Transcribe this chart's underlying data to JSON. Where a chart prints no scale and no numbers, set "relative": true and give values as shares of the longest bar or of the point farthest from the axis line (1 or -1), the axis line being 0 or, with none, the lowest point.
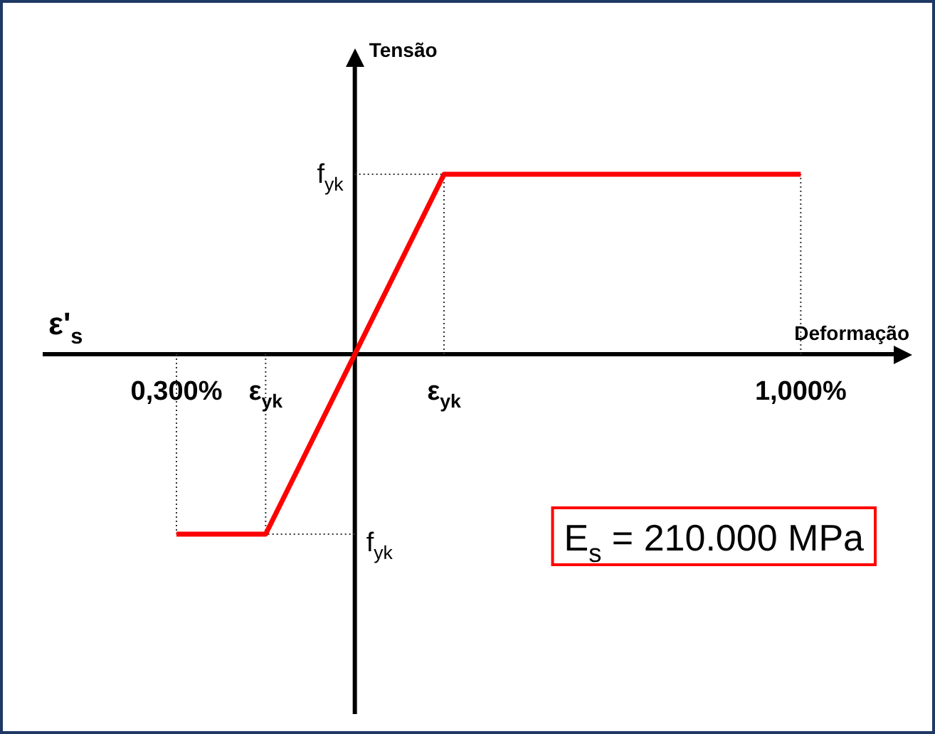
{
  "chart_data": {
    "type": "line",
    "relative": true,
    "xlabel": "Deformação",
    "categories": [
      null,
      null,
      null,
      null,
      null,
      null,
      "0,300%",
      null,
      null,
      null,
      "ε$_{yk}$",
      null,
      null,
      null,
      null,
      null,
      null,
      null,
      "ε$_{yk}$",
      null,
      null,
      null,
      null,
      null,
      null,
      null,
      null,
      null,
      null,
      null,
      null,
      null,
      null,
      null,
      "1,000%",
      null,
      null,
      null,
      null,
      null
    ],
    "series": [
      {
        "color": "#ff0000",
        "values": [
          null,
          null,
          null,
          null,
          null,
          null,
          -1,
          null,
          null,
          null,
          -1,
          null,
          null,
          null,
          0,
          null,
          null,
          null,
          1,
          null,
          null,
          null,
          null,
          null,
          null,
          null,
          null,
          null,
          null,
          null,
          null,
          null,
          null,
          null,
          1,
          null,
          null,
          null,
          null,
          null
        ]
      }
    ],
    "annotations": [
      "ε'$_{s}$",
      "E$_{s}$ = 210.000 MPa",
      "f$_{yk}$",
      "f$_{yk}$",
      "Tensão"
    ]
  }
}
